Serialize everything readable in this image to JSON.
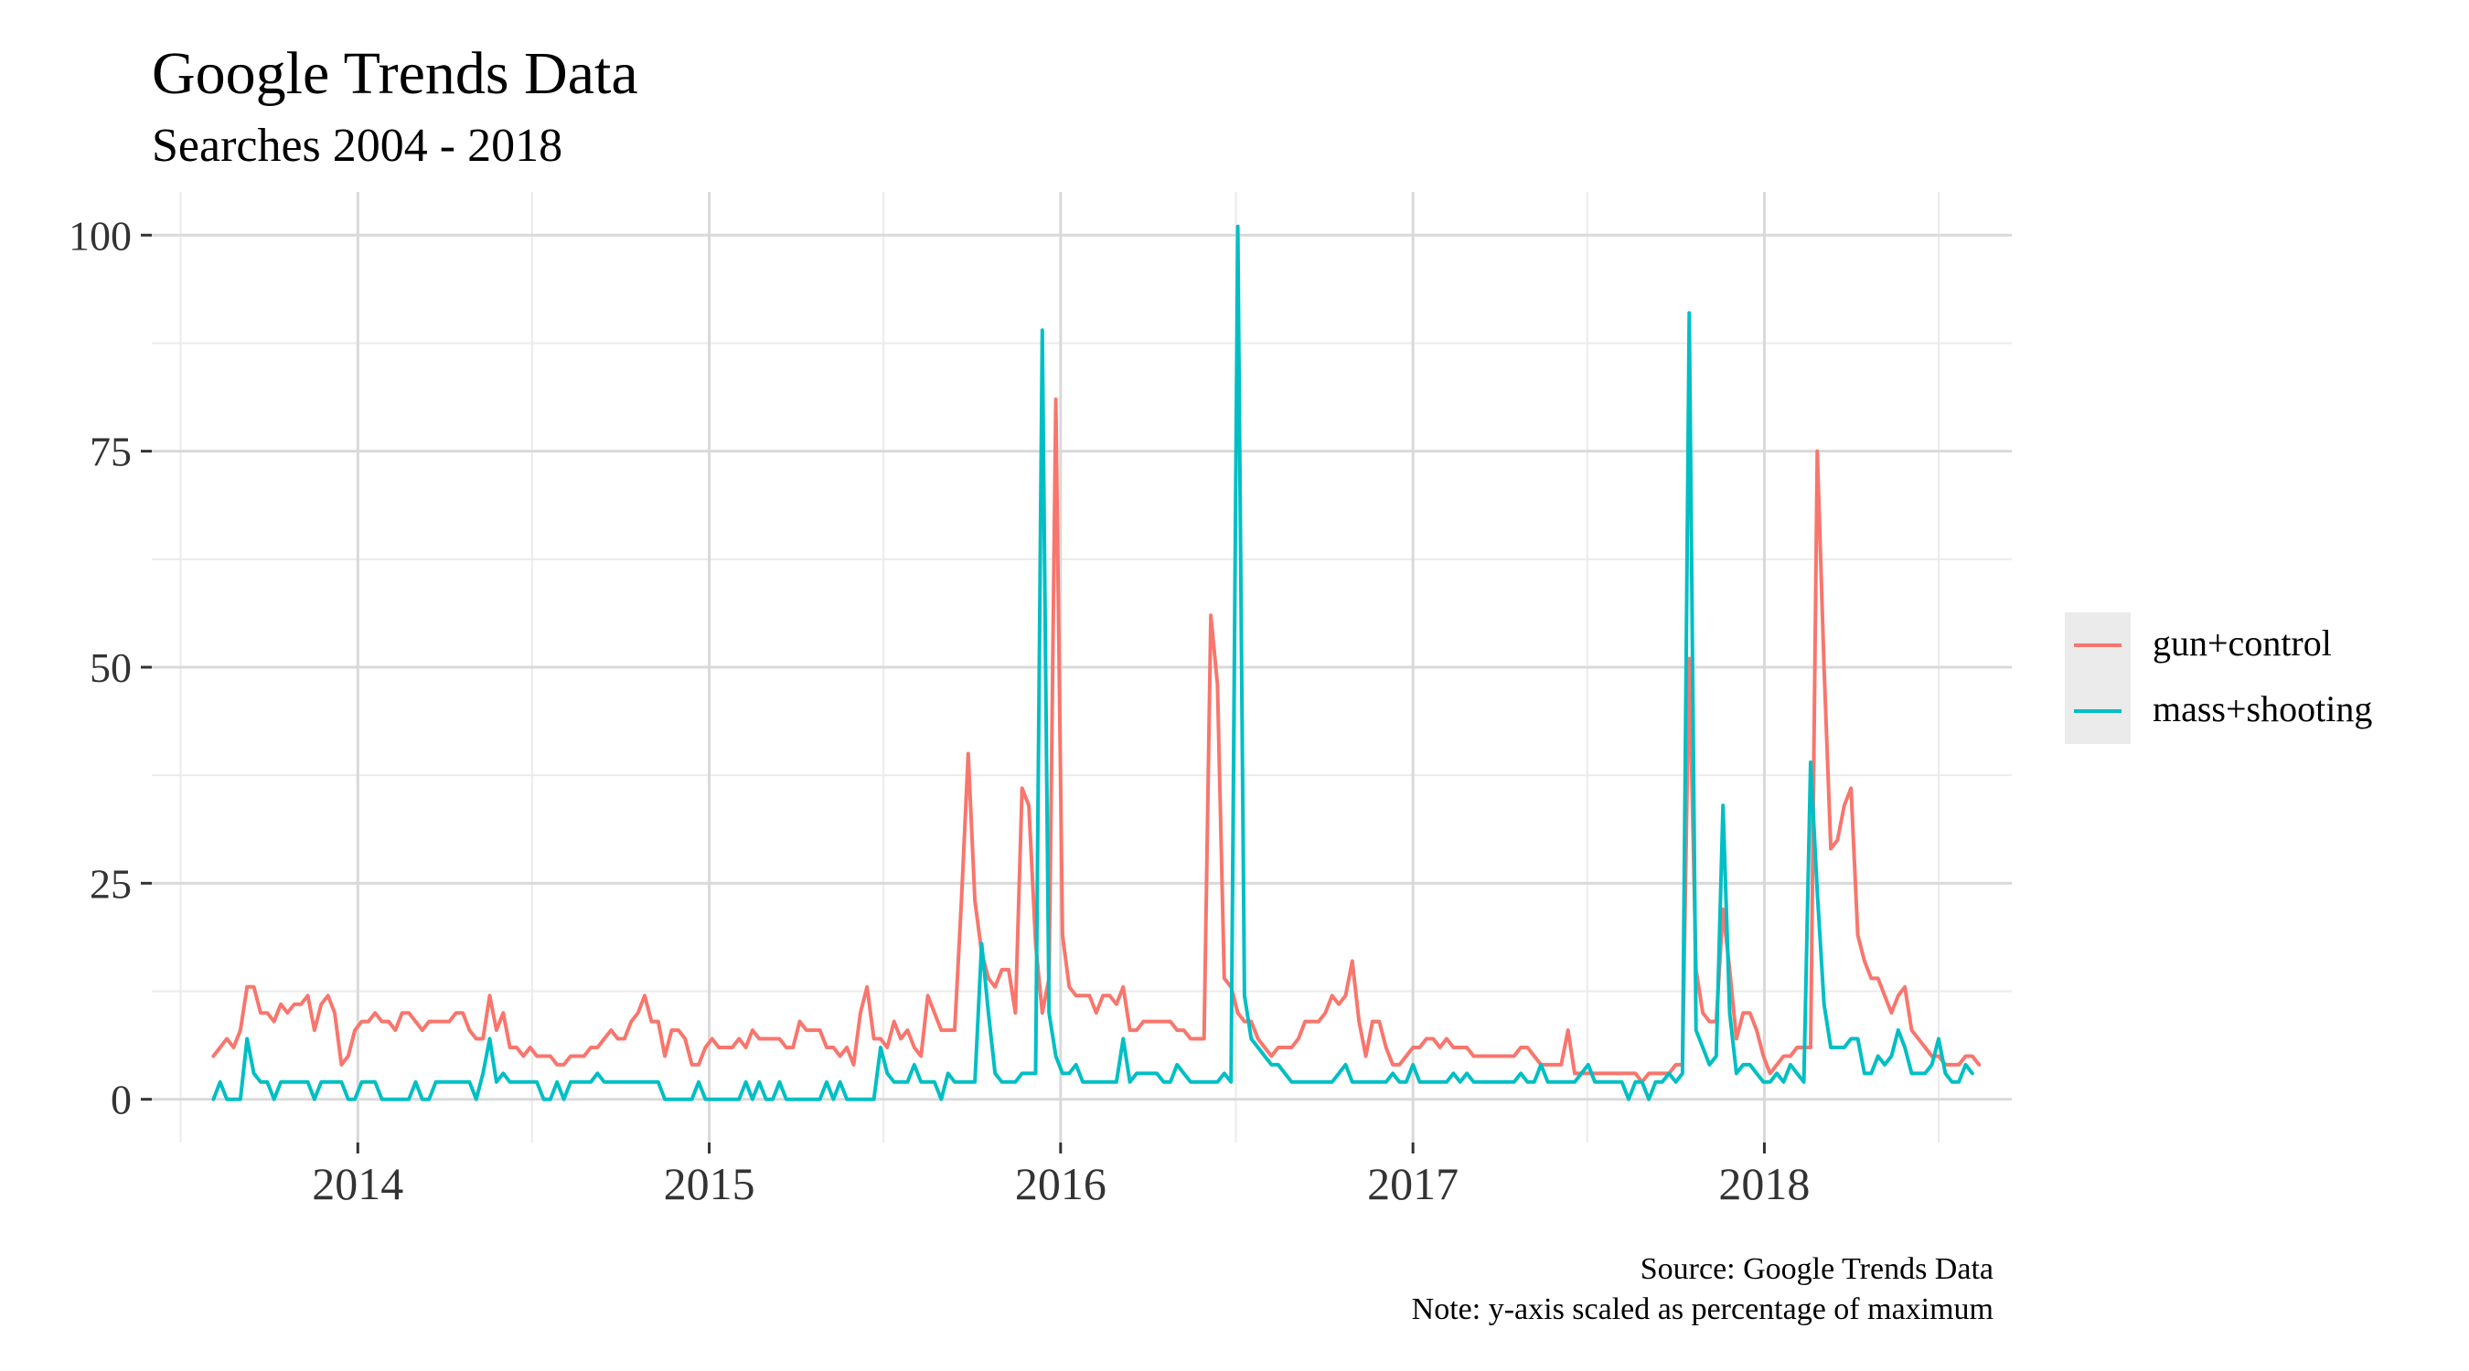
{
  "chart_data": {
    "type": "line",
    "title": "Google Trends Data",
    "subtitle": "Searches 2004 - 2018",
    "caption": [
      "Source: Google Trends Data",
      "Note: y-axis scaled as percentage of maximum"
    ],
    "xlabel": "",
    "ylabel": "",
    "x_start": "2013-08-04",
    "x_interval_days": 7,
    "x_tick_labels": [
      "2014",
      "2015",
      "2016",
      "2017",
      "2018"
    ],
    "x_ticks": [
      "2014-01-01",
      "2015-01-01",
      "2016-01-01",
      "2017-01-01",
      "2018-01-01"
    ],
    "y_ticks": [
      0,
      25,
      50,
      75,
      100
    ],
    "y_tick_labels": [
      "0",
      "25",
      "50",
      "75",
      "100"
    ],
    "xlim": [
      "2013-06-01",
      "2018-09-15"
    ],
    "ylim": [
      -5,
      105
    ],
    "grid": true,
    "legend_position": "right",
    "series": [
      {
        "name": "gun+control",
        "color": "#F8766D",
        "values": [
          5,
          6,
          7,
          6,
          8,
          13,
          13,
          10,
          10,
          9,
          11,
          10,
          11,
          11,
          12,
          8,
          11,
          12,
          10,
          4,
          5,
          8,
          9,
          9,
          10,
          9,
          9,
          8,
          10,
          10,
          9,
          8,
          9,
          9,
          9,
          9,
          10,
          10,
          8,
          7,
          7,
          12,
          8,
          10,
          6,
          6,
          5,
          6,
          5,
          5,
          5,
          4,
          4,
          5,
          5,
          5,
          6,
          6,
          7,
          8,
          7,
          7,
          9,
          10,
          12,
          9,
          9,
          5,
          8,
          8,
          7,
          4,
          4,
          6,
          7,
          6,
          6,
          6,
          7,
          6,
          8,
          7,
          7,
          7,
          7,
          6,
          6,
          9,
          8,
          8,
          8,
          6,
          6,
          5,
          6,
          4,
          10,
          13,
          7,
          7,
          6,
          9,
          7,
          8,
          6,
          5,
          12,
          10,
          8,
          8,
          8,
          23,
          40,
          23,
          17,
          14,
          13,
          15,
          15,
          10,
          36,
          34,
          18,
          10,
          14,
          81,
          19,
          13,
          12,
          12,
          12,
          10,
          12,
          12,
          11,
          13,
          8,
          8,
          9,
          9,
          9,
          9,
          9,
          8,
          8,
          7,
          7,
          7,
          56,
          48,
          14,
          13,
          10,
          9,
          9,
          7,
          6,
          5,
          6,
          6,
          6,
          7,
          9,
          9,
          9,
          10,
          12,
          11,
          12,
          16,
          9,
          5,
          9,
          9,
          6,
          4,
          4,
          5,
          6,
          6,
          7,
          7,
          6,
          7,
          6,
          6,
          6,
          5,
          5,
          5,
          5,
          5,
          5,
          5,
          6,
          6,
          5,
          4,
          4,
          4,
          4,
          8,
          3,
          3,
          3,
          3,
          3,
          3,
          3,
          3,
          3,
          3,
          2,
          3,
          3,
          3,
          3,
          4,
          4,
          51,
          15,
          10,
          9,
          9,
          22,
          15,
          7,
          10,
          10,
          8,
          5,
          3,
          4,
          5,
          5,
          6,
          6,
          6,
          75,
          50,
          29,
          30,
          34,
          36,
          19,
          16,
          14,
          14,
          12,
          10,
          12,
          13,
          8,
          7,
          6,
          5,
          5,
          4,
          4,
          4,
          5,
          5,
          4
        ],
        "legend_label": "gun+control"
      },
      {
        "name": "mass+shooting",
        "color": "#00BFC4",
        "values": [
          0,
          2,
          0,
          0,
          0,
          7,
          3,
          2,
          2,
          0,
          2,
          2,
          2,
          2,
          2,
          0,
          2,
          2,
          2,
          2,
          0,
          0,
          2,
          2,
          2,
          0,
          0,
          0,
          0,
          0,
          2,
          0,
          0,
          2,
          2,
          2,
          2,
          2,
          2,
          0,
          3,
          7,
          2,
          3,
          2,
          2,
          2,
          2,
          2,
          0,
          0,
          2,
          0,
          2,
          2,
          2,
          2,
          3,
          2,
          2,
          2,
          2,
          2,
          2,
          2,
          2,
          2,
          0,
          0,
          0,
          0,
          0,
          2,
          0,
          0,
          0,
          0,
          0,
          0,
          2,
          0,
          2,
          0,
          0,
          2,
          0,
          0,
          0,
          0,
          0,
          0,
          2,
          0,
          2,
          0,
          0,
          0,
          0,
          0,
          6,
          3,
          2,
          2,
          2,
          4,
          2,
          2,
          2,
          0,
          3,
          2,
          2,
          2,
          2,
          18,
          10,
          3,
          2,
          2,
          2,
          3,
          3,
          3,
          89,
          10,
          5,
          3,
          3,
          4,
          2,
          2,
          2,
          2,
          2,
          2,
          7,
          2,
          3,
          3,
          3,
          3,
          2,
          2,
          4,
          3,
          2,
          2,
          2,
          2,
          2,
          3,
          2,
          101,
          12,
          7,
          6,
          5,
          4,
          4,
          3,
          2,
          2,
          2,
          2,
          2,
          2,
          2,
          3,
          4,
          2,
          2,
          2,
          2,
          2,
          2,
          3,
          2,
          2,
          4,
          2,
          2,
          2,
          2,
          2,
          3,
          2,
          3,
          2,
          2,
          2,
          2,
          2,
          2,
          2,
          3,
          2,
          2,
          4,
          2,
          2,
          2,
          2,
          2,
          3,
          4,
          2,
          2,
          2,
          2,
          2,
          0,
          2,
          2,
          0,
          2,
          2,
          3,
          2,
          3,
          91,
          8,
          6,
          4,
          5,
          34,
          10,
          3,
          4,
          4,
          3,
          2,
          2,
          3,
          2,
          4,
          3,
          2,
          39,
          24,
          11,
          6,
          6,
          6,
          7,
          7,
          3,
          3,
          5,
          4,
          5,
          8,
          6,
          3,
          3,
          3,
          4,
          7,
          3,
          2,
          2,
          4,
          3
        ],
        "legend_label": "mass+shooting"
      }
    ]
  }
}
